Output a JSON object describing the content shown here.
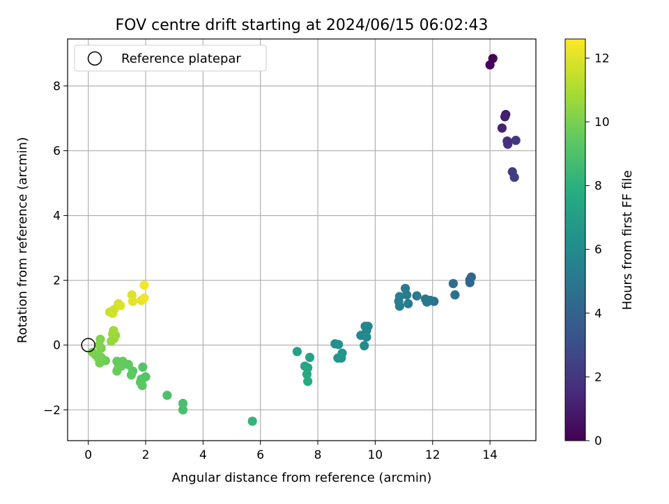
{
  "chart_data": {
    "type": "scatter",
    "title": "FOV centre drift starting at 2024/06/15 06:02:43",
    "xlabel": "Angular distance from reference (arcmin)",
    "ylabel": "Rotation from reference (arcmin)",
    "xlim": [
      -0.72,
      15.6
    ],
    "ylim": [
      -2.95,
      9.45
    ],
    "xticks": [
      0,
      2,
      4,
      6,
      8,
      10,
      12,
      14
    ],
    "xtick_labels": [
      "0",
      "2",
      "4",
      "6",
      "8",
      "10",
      "12",
      "14"
    ],
    "yticks": [
      -2,
      0,
      2,
      4,
      6,
      8
    ],
    "ytick_labels": [
      "−2",
      "0",
      "2",
      "4",
      "6",
      "8"
    ],
    "grid": true,
    "legend": {
      "position": "top-left",
      "entries": [
        {
          "label": "Reference platepar",
          "marker": "open-circle"
        }
      ]
    },
    "reference_point": {
      "x": 0,
      "y": 0
    },
    "colorbar": {
      "label": "Hours from first FF file",
      "min": 0,
      "max": 12.6,
      "colormap": "viridis",
      "ticks": [
        0,
        2,
        4,
        6,
        8,
        10,
        12
      ],
      "tick_labels": [
        "0",
        "2",
        "4",
        "6",
        "8",
        "10",
        "12"
      ]
    },
    "points": [
      {
        "x": 14.1,
        "y": 8.85,
        "h": 0.1
      },
      {
        "x": 14.0,
        "y": 8.65,
        "h": 0.2
      },
      {
        "x": 14.55,
        "y": 7.12,
        "h": 1.0
      },
      {
        "x": 14.52,
        "y": 7.05,
        "h": 1.1
      },
      {
        "x": 14.42,
        "y": 6.7,
        "h": 1.2
      },
      {
        "x": 14.6,
        "y": 6.3,
        "h": 1.7
      },
      {
        "x": 14.62,
        "y": 6.2,
        "h": 1.8
      },
      {
        "x": 14.9,
        "y": 6.32,
        "h": 2.0
      },
      {
        "x": 14.78,
        "y": 5.35,
        "h": 2.3
      },
      {
        "x": 14.85,
        "y": 5.18,
        "h": 2.4
      },
      {
        "x": 13.35,
        "y": 2.1,
        "h": 4.2
      },
      {
        "x": 13.3,
        "y": 2.02,
        "h": 4.3
      },
      {
        "x": 13.3,
        "y": 1.93,
        "h": 4.3
      },
      {
        "x": 12.72,
        "y": 1.9,
        "h": 4.6
      },
      {
        "x": 12.78,
        "y": 1.55,
        "h": 4.7
      },
      {
        "x": 12.05,
        "y": 1.35,
        "h": 4.8
      },
      {
        "x": 11.92,
        "y": 1.38,
        "h": 4.9
      },
      {
        "x": 11.75,
        "y": 1.42,
        "h": 5.0
      },
      {
        "x": 11.8,
        "y": 1.33,
        "h": 5.0
      },
      {
        "x": 11.45,
        "y": 1.52,
        "h": 5.1
      },
      {
        "x": 11.05,
        "y": 1.75,
        "h": 5.2
      },
      {
        "x": 11.1,
        "y": 1.55,
        "h": 5.3
      },
      {
        "x": 11.15,
        "y": 1.28,
        "h": 5.3
      },
      {
        "x": 10.85,
        "y": 1.5,
        "h": 5.4
      },
      {
        "x": 10.82,
        "y": 1.35,
        "h": 5.4
      },
      {
        "x": 10.85,
        "y": 1.2,
        "h": 5.5
      },
      {
        "x": 9.65,
        "y": 0.58,
        "h": 5.8
      },
      {
        "x": 9.7,
        "y": 0.45,
        "h": 5.8
      },
      {
        "x": 9.5,
        "y": 0.3,
        "h": 5.9
      },
      {
        "x": 9.65,
        "y": 0.32,
        "h": 5.9
      },
      {
        "x": 9.7,
        "y": 0.25,
        "h": 6.0
      },
      {
        "x": 9.62,
        "y": -0.02,
        "h": 6.0
      },
      {
        "x": 9.75,
        "y": 0.58,
        "h": 5.7
      },
      {
        "x": 8.6,
        "y": 0.04,
        "h": 6.3
      },
      {
        "x": 8.72,
        "y": 0.02,
        "h": 6.4
      },
      {
        "x": 8.85,
        "y": -0.25,
        "h": 6.5
      },
      {
        "x": 8.7,
        "y": -0.4,
        "h": 6.5
      },
      {
        "x": 8.82,
        "y": -0.4,
        "h": 6.6
      },
      {
        "x": 7.28,
        "y": -0.2,
        "h": 7.2
      },
      {
        "x": 7.72,
        "y": -0.38,
        "h": 7.3
      },
      {
        "x": 7.55,
        "y": -0.65,
        "h": 7.4
      },
      {
        "x": 7.65,
        "y": -0.7,
        "h": 7.5
      },
      {
        "x": 7.62,
        "y": -0.9,
        "h": 7.6
      },
      {
        "x": 7.65,
        "y": -1.12,
        "h": 7.7
      },
      {
        "x": 5.72,
        "y": -2.35,
        "h": 8.3
      },
      {
        "x": 3.3,
        "y": -1.8,
        "h": 8.9
      },
      {
        "x": 3.3,
        "y": -2.0,
        "h": 8.9
      },
      {
        "x": 2.75,
        "y": -1.55,
        "h": 9.0
      },
      {
        "x": 1.9,
        "y": -0.68,
        "h": 9.2
      },
      {
        "x": 2.0,
        "y": -0.98,
        "h": 9.2
      },
      {
        "x": 1.85,
        "y": -1.05,
        "h": 9.3
      },
      {
        "x": 1.82,
        "y": -1.15,
        "h": 9.3
      },
      {
        "x": 1.88,
        "y": -1.25,
        "h": 9.4
      },
      {
        "x": 1.55,
        "y": -0.8,
        "h": 9.4
      },
      {
        "x": 1.5,
        "y": -0.92,
        "h": 9.5
      },
      {
        "x": 1.4,
        "y": -0.6,
        "h": 9.5
      },
      {
        "x": 1.2,
        "y": -0.5,
        "h": 9.6
      },
      {
        "x": 1.15,
        "y": -0.65,
        "h": 9.6
      },
      {
        "x": 1.0,
        "y": -0.5,
        "h": 9.6
      },
      {
        "x": 1.05,
        "y": -0.7,
        "h": 9.7
      },
      {
        "x": 1.0,
        "y": -0.8,
        "h": 9.7
      },
      {
        "x": 0.6,
        "y": -0.48,
        "h": 9.8
      },
      {
        "x": 0.45,
        "y": -0.38,
        "h": 9.9
      },
      {
        "x": 0.4,
        "y": -0.55,
        "h": 9.9
      },
      {
        "x": 0.35,
        "y": -0.4,
        "h": 10.0
      },
      {
        "x": 0.25,
        "y": -0.3,
        "h": 10.0
      },
      {
        "x": 0.15,
        "y": -0.22,
        "h": 10.1
      },
      {
        "x": 0.45,
        "y": -0.1,
        "h": 10.1
      },
      {
        "x": 0.38,
        "y": 0.0,
        "h": 10.2
      },
      {
        "x": 0.42,
        "y": 0.18,
        "h": 10.2
      },
      {
        "x": 0.8,
        "y": 0.12,
        "h": 10.6
      },
      {
        "x": 0.9,
        "y": 0.2,
        "h": 10.6
      },
      {
        "x": 0.95,
        "y": 0.3,
        "h": 10.7
      },
      {
        "x": 0.85,
        "y": 0.35,
        "h": 10.8
      },
      {
        "x": 0.88,
        "y": 0.45,
        "h": 10.8
      },
      {
        "x": 0.75,
        "y": 1.02,
        "h": 11.6
      },
      {
        "x": 0.85,
        "y": 0.98,
        "h": 11.7
      },
      {
        "x": 0.9,
        "y": 1.1,
        "h": 11.7
      },
      {
        "x": 1.05,
        "y": 1.28,
        "h": 11.8
      },
      {
        "x": 1.12,
        "y": 1.22,
        "h": 11.9
      },
      {
        "x": 1.52,
        "y": 1.55,
        "h": 12.0
      },
      {
        "x": 1.55,
        "y": 1.35,
        "h": 12.1
      },
      {
        "x": 1.85,
        "y": 1.38,
        "h": 12.2
      },
      {
        "x": 1.95,
        "y": 1.45,
        "h": 12.3
      },
      {
        "x": 1.95,
        "y": 1.85,
        "h": 12.4
      }
    ]
  }
}
